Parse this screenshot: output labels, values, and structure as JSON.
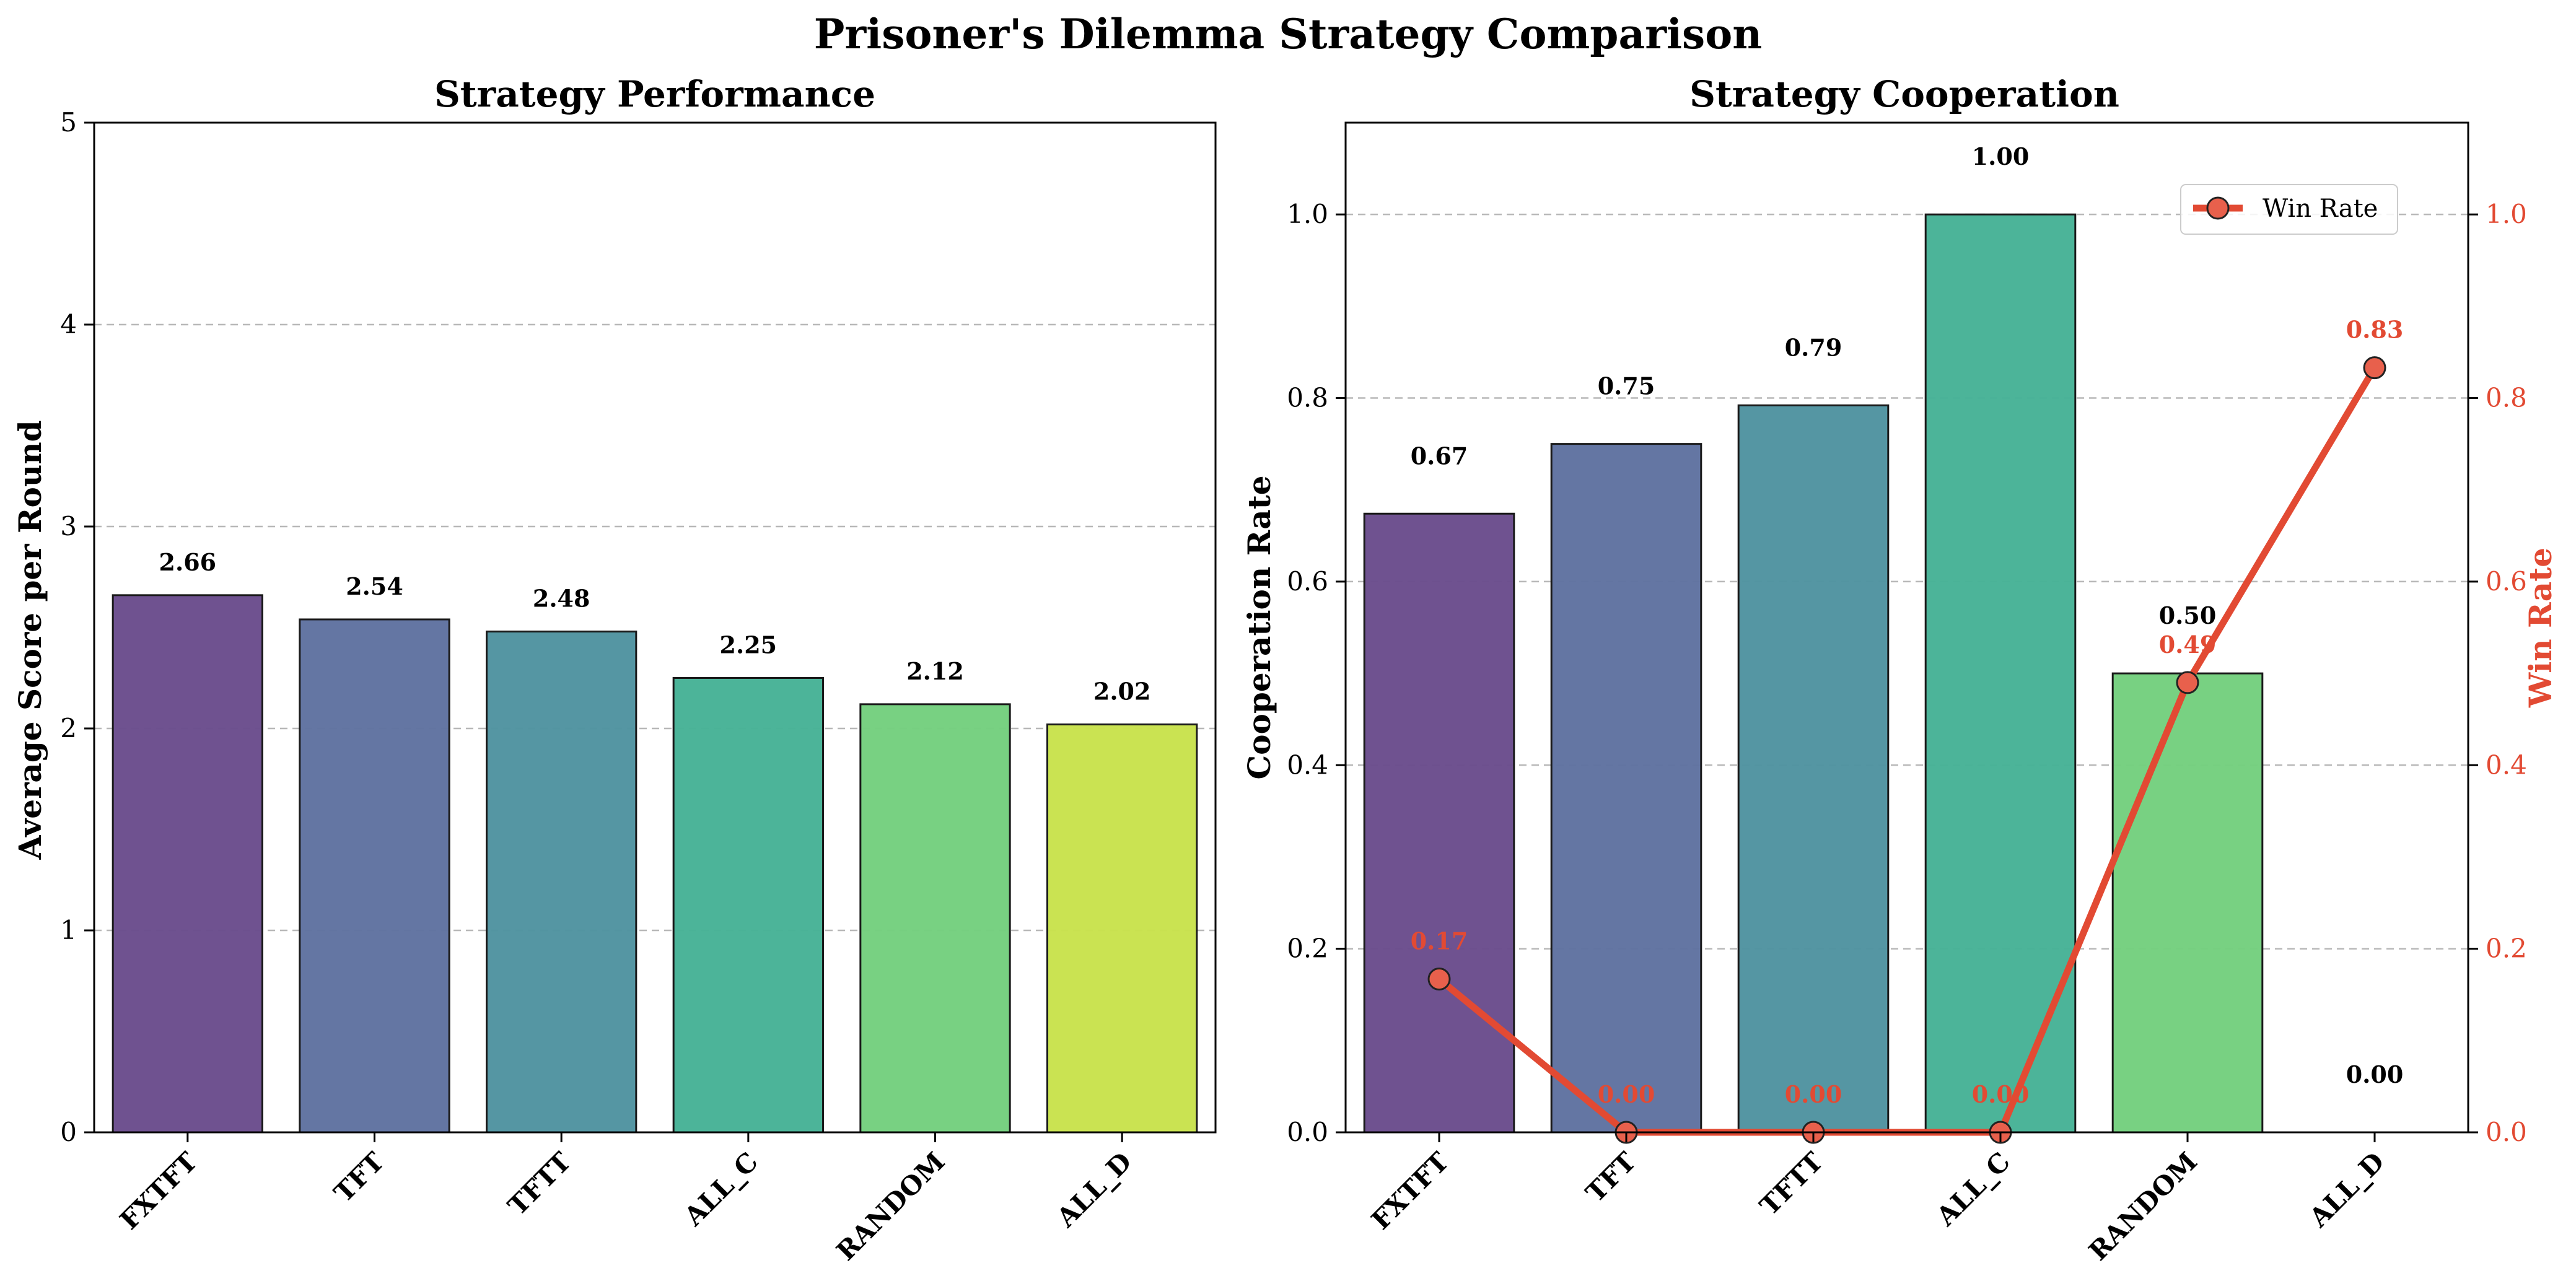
{
  "figure": {
    "title": "Prisoner's Dilemma Strategy Comparison"
  },
  "chart_data": [
    {
      "type": "bar",
      "title": "Strategy Performance",
      "xlabel": "",
      "ylabel": "Average Score per Round",
      "categories": [
        "FXTFT",
        "TFT",
        "TFTT",
        "ALL_C",
        "RANDOM",
        "ALL_D"
      ],
      "values": [
        2.66,
        2.54,
        2.48,
        2.25,
        2.12,
        2.02
      ],
      "value_labels": [
        "2.66",
        "2.54",
        "2.48",
        "2.25",
        "2.12",
        "2.02"
      ],
      "ylim": [
        0,
        5
      ],
      "yticks": [
        0,
        1,
        2,
        3,
        4,
        5
      ],
      "ytick_labels": [
        "0",
        "1",
        "2",
        "3",
        "4",
        "5"
      ],
      "grid": "y-dashed",
      "bar_colors": [
        "#6a4c8c",
        "#5f72a0",
        "#4f93a0",
        "#46b296",
        "#74cf7e",
        "#c8e24c"
      ]
    },
    {
      "type": "bar+line",
      "title": "Strategy Cooperation",
      "xlabel": "",
      "ylabel": "Cooperation Rate",
      "y2label": "Win Rate",
      "categories": [
        "FXTFT",
        "TFT",
        "TFTT",
        "ALL_C",
        "RANDOM",
        "ALL_D"
      ],
      "values": [
        0.674,
        0.75,
        0.792,
        1.0,
        0.5,
        0.0
      ],
      "value_labels": [
        "0.67",
        "0.75",
        "0.79",
        "1.00",
        "0.50",
        "0.00"
      ],
      "ylim": [
        0,
        1.1
      ],
      "yticks": [
        0,
        0.2,
        0.4,
        0.6,
        0.8,
        1.0
      ],
      "ytick_labels": [
        "0.0",
        "0.2",
        "0.4",
        "0.6",
        "0.8",
        "1.0"
      ],
      "y2lim": [
        0,
        1.1
      ],
      "y2ticks": [
        0,
        0.2,
        0.4,
        0.6,
        0.8,
        1.0
      ],
      "y2tick_labels": [
        "0.0",
        "0.2",
        "0.4",
        "0.6",
        "0.8",
        "1.0"
      ],
      "grid": "y-dashed",
      "bar_colors": [
        "#6a4c8c",
        "#5f72a0",
        "#4f93a0",
        "#46b296",
        "#74cf7e",
        "#c8e24c"
      ],
      "series": [
        {
          "name": "Win Rate",
          "values": [
            0.167,
            0.0,
            0.0,
            0.0,
            0.49,
            0.833
          ],
          "value_labels": [
            "0.17",
            "0.00",
            "0.00",
            "0.00",
            "0.49",
            "0.83"
          ],
          "color": "#e24a33",
          "marker_color": "#e8604c"
        }
      ],
      "legend": "top-right"
    }
  ]
}
